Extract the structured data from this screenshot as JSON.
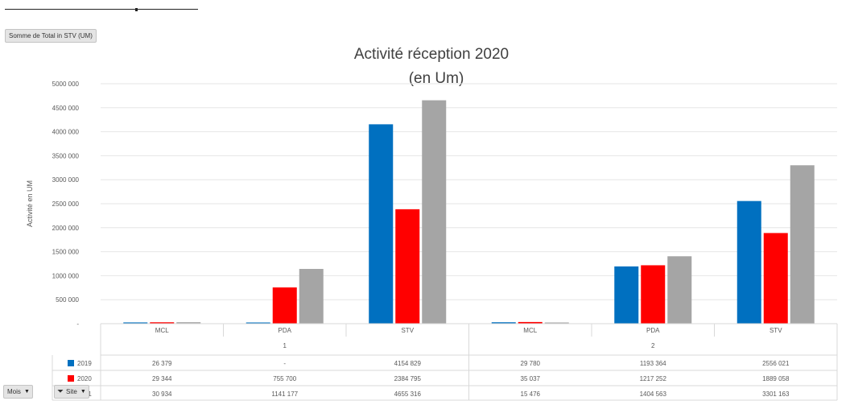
{
  "field_button": "Somme de Total in STV (UM)",
  "filters": {
    "mois_label": "Mois",
    "site_label": "Site"
  },
  "chart_data": {
    "type": "bar",
    "title_line1": "Activité réception 2020",
    "title_line2": "(en Um)",
    "ylabel": "Activité en UM",
    "ylim": [
      0,
      5000000
    ],
    "yticks": [
      "5000 000",
      "4500 000",
      "4000 000",
      "3500 000",
      "3000 000",
      "2500 000",
      "2000 000",
      "1500 000",
      "1000 000",
      "500 000",
      "-"
    ],
    "groups": [
      "1",
      "2"
    ],
    "categories": [
      "MCL",
      "PDA",
      "STV",
      "MCL",
      "PDA",
      "STV"
    ],
    "series": [
      {
        "name": "2019",
        "color": "#0070c0",
        "values": [
          26379,
          0,
          4154829,
          29780,
          1193364,
          2556021
        ],
        "labels": [
          "26 379",
          "-",
          "4154 829",
          "29 780",
          "1193 364",
          "2556 021"
        ]
      },
      {
        "name": "2020",
        "color": "#ff0000",
        "values": [
          29344,
          755700,
          2384795,
          35037,
          1217252,
          1889058
        ],
        "labels": [
          "29 344",
          "755 700",
          "2384 795",
          "35 037",
          "1217 252",
          "1889 058"
        ]
      },
      {
        "name": "2021",
        "color": "#a5a5a5",
        "values": [
          30934,
          1141177,
          4655316,
          15476,
          1404563,
          3301163
        ],
        "labels": [
          "30 934",
          "1141 177",
          "4655 316",
          "15 476",
          "1404 563",
          "3301 163"
        ]
      }
    ]
  }
}
